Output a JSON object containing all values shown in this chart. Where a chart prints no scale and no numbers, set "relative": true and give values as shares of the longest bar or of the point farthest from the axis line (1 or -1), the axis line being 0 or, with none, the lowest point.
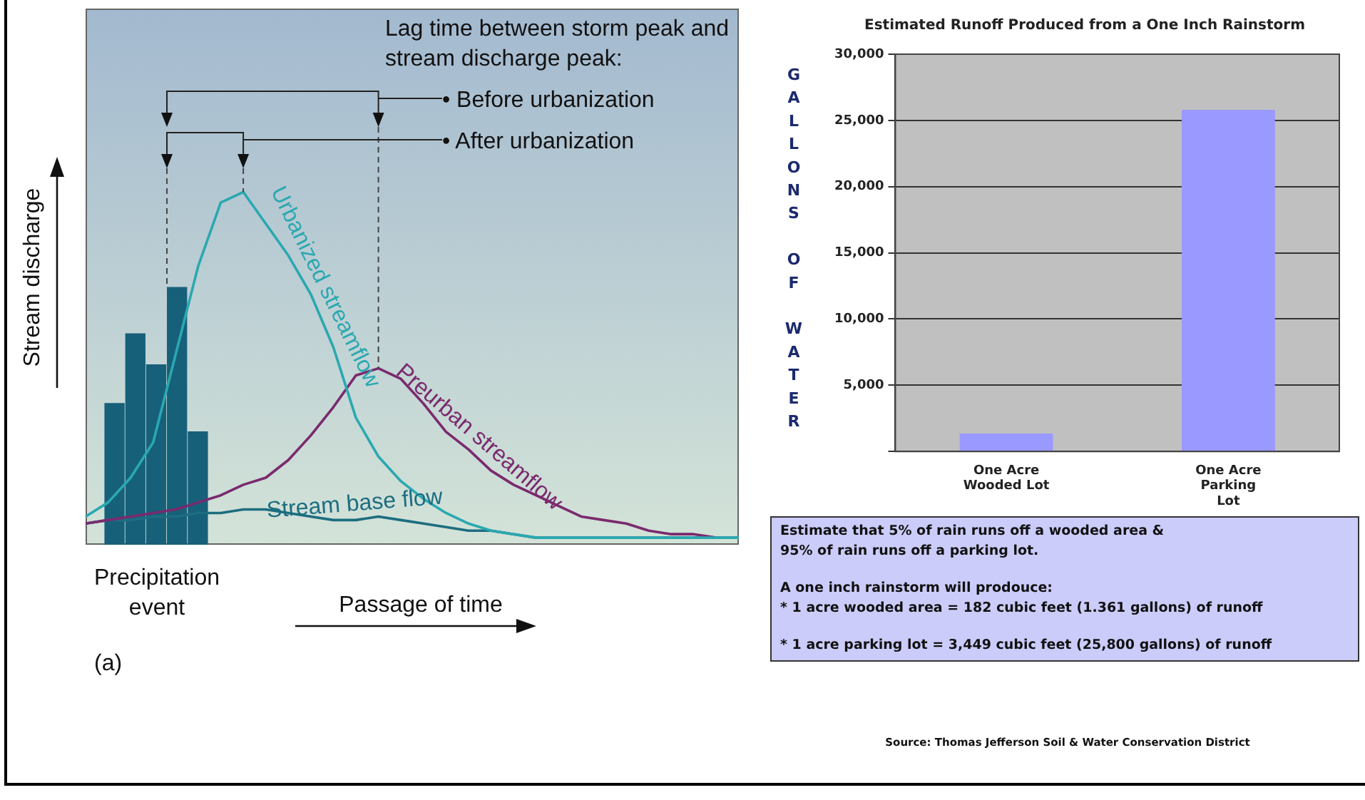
{
  "chart_data": [
    {
      "type": "bar",
      "relative": true,
      "categories": [
        null,
        null,
        null,
        null,
        null
      ],
      "values": [
        0.55,
        0.82,
        0.7,
        1.0,
        0.44
      ],
      "color": "#17607a"
    },
    {
      "type": "line",
      "relative": true,
      "xlabel": "Passage of time",
      "ylabel": "Stream discharge",
      "categories": [
        null,
        null,
        null,
        null,
        null,
        null,
        null,
        null,
        null,
        null,
        null,
        null,
        null,
        null,
        null,
        null,
        null,
        null,
        null,
        null,
        null,
        null,
        null,
        null,
        null,
        null,
        null,
        null,
        null,
        null
      ],
      "series": [
        {
          "name": "Urbanized streamflow",
          "color": "#2aa8b0",
          "values": [
            0.08,
            0.12,
            0.19,
            0.29,
            0.54,
            0.79,
            0.97,
            1.0,
            0.91,
            0.82,
            0.71,
            0.56,
            0.36,
            0.25,
            0.18,
            0.13,
            0.09,
            0.06,
            0.04,
            0.03,
            0.02,
            0.02,
            0.02,
            0.02,
            0.02,
            0.02,
            0.02,
            0.02,
            0.02,
            0.02
          ]
        },
        {
          "name": "Preurban streamflow",
          "color": "#7a2a6e",
          "values": [
            0.06,
            0.07,
            0.08,
            0.09,
            0.1,
            0.12,
            0.14,
            0.17,
            0.19,
            0.24,
            0.31,
            0.39,
            0.48,
            0.5,
            0.47,
            0.4,
            0.32,
            0.27,
            0.21,
            0.17,
            0.14,
            0.11,
            0.08,
            0.07,
            0.06,
            0.04,
            0.03,
            0.03,
            0.02,
            null
          ]
        },
        {
          "name": "Stream base flow",
          "color": "#1d6d80",
          "values": [
            0.06,
            0.07,
            0.07,
            0.08,
            0.08,
            0.09,
            0.09,
            0.1,
            0.1,
            0.09,
            0.08,
            0.07,
            0.07,
            0.08,
            0.07,
            0.06,
            0.05,
            0.04,
            0.04,
            0.03,
            0.02,
            0.02,
            0.02,
            0.02,
            0.02,
            0.02,
            0.02,
            0.02,
            0.02,
            0.02
          ]
        }
      ],
      "marker": "none",
      "annotations": [
        "Lag time between storm peak and stream discharge peak:",
        "• Before urbanization",
        "• After urbanization",
        "Precipitation event",
        "(a)"
      ]
    },
    {
      "type": "bar",
      "title": "Estimated Runoff Produced from a One Inch Rainstorm",
      "ylabel": "GALLONS OF WATER",
      "categories": [
        "One Acre Wooded Lot",
        "One Acre Parking Lot"
      ],
      "values": [
        1361,
        25800
      ],
      "color": "#9999ff",
      "ylim": [
        0,
        30000
      ],
      "yticks": [
        {
          "value": 0,
          "label": null
        },
        {
          "value": 5000,
          "label": "5,000"
        },
        {
          "value": 10000,
          "label": "10,000"
        },
        {
          "value": 15000,
          "label": "15,000"
        },
        {
          "value": 20000,
          "label": "20,000"
        },
        {
          "value": 25000,
          "label": "25,000"
        },
        {
          "value": 30000,
          "label": "30,000"
        }
      ],
      "grid": "y",
      "annotations": [
        "Estimate that 5% of rain runs off a wooded area & 95% of rain runs off a parking lot.",
        "A one inch rainstorm will prodouce:",
        "* 1 acre wooded area = 182 cubic feet (1.361 gallons) of runoff",
        "* 1 acre parking lot = 3,449 cubic feet (25,800 gallons) of runoff",
        "Source: Thomas Jefferson Soil & Water Conservation District"
      ]
    }
  ]
}
